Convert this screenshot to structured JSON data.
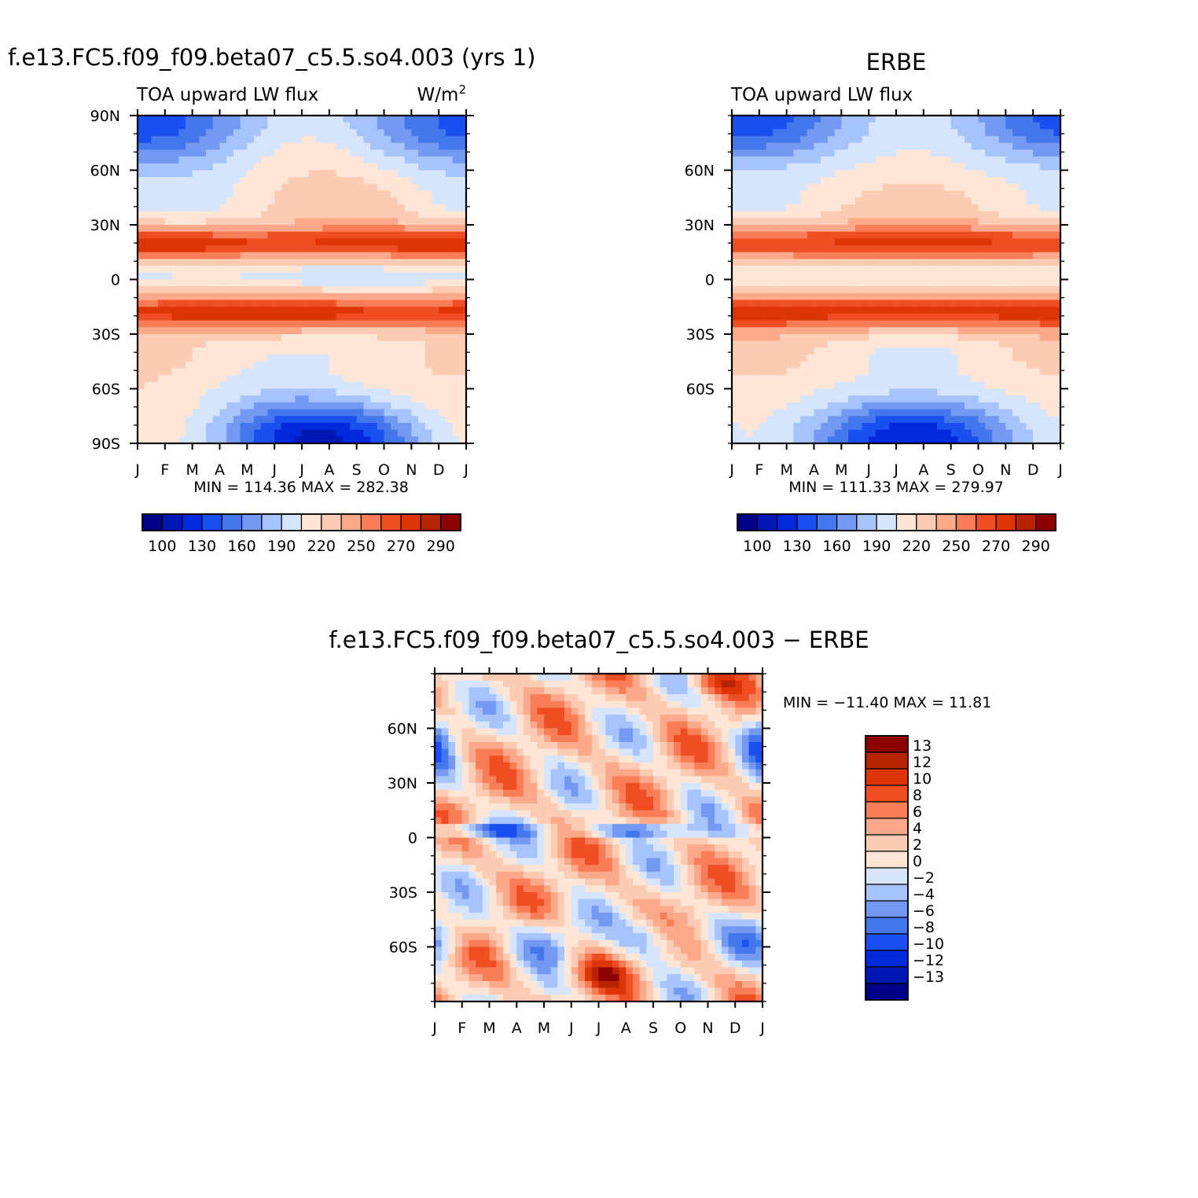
{
  "palette": {
    "cmap": [
      "#000087",
      "#0018b4",
      "#0029dc",
      "#1a4ff0",
      "#4577ec",
      "#7399f2",
      "#a7c3fb",
      "#d6e5fb",
      "#fee6d6",
      "#fccbb3",
      "#fba98a",
      "#f97e57",
      "#ef4d22",
      "#dd3506",
      "#b52300",
      "#8c0000"
    ],
    "diff": [
      "#000087",
      "#0018b4",
      "#0029dc",
      "#1a4ff0",
      "#4577ec",
      "#7399f2",
      "#a7c3fb",
      "#d6e5fb",
      "#fee6d6",
      "#fccbb3",
      "#fba98a",
      "#f97e57",
      "#ef4d22",
      "#dd3506",
      "#b52300",
      "#8c0000"
    ]
  },
  "chart_data": [
    {
      "type": "heatmap",
      "id": "model",
      "title": "f.e13.FC5.f09_f09.beta07_c5.5.so4.003 (yrs 1)",
      "subtitle_left": "TOA upward LW flux",
      "subtitle_right": "W/m",
      "subtitle_right_sup": "2",
      "xticks": [
        "J",
        "F",
        "M",
        "A",
        "M",
        "J",
        "J",
        "A",
        "S",
        "O",
        "N",
        "D",
        "J"
      ],
      "yticks": [
        "90N",
        "60N",
        "30N",
        "0",
        "30S",
        "60S",
        "90S"
      ],
      "ylim": [
        -90,
        90
      ],
      "stats": "MIN = 114.36 MAX = 282.38",
      "levels": [
        100,
        115,
        130,
        145,
        160,
        175,
        190,
        205,
        220,
        235,
        250,
        260,
        270,
        280,
        290
      ],
      "colorbar_labels": [
        "100",
        "130",
        "160",
        "190",
        "220",
        "250",
        "270",
        "290"
      ],
      "min": 114.36,
      "max": 282.38
    },
    {
      "type": "heatmap",
      "id": "obs",
      "title": "ERBE",
      "subtitle_left": "TOA upward LW flux",
      "xticks": [
        "J",
        "F",
        "M",
        "A",
        "M",
        "J",
        "J",
        "A",
        "S",
        "O",
        "N",
        "D",
        "J"
      ],
      "yticks": [
        "60N",
        "30N",
        "0",
        "30S",
        "60S"
      ],
      "ylim": [
        -90,
        90
      ],
      "stats": "MIN = 111.33 MAX = 279.97",
      "levels": [
        100,
        115,
        130,
        145,
        160,
        175,
        190,
        205,
        220,
        235,
        250,
        260,
        270,
        280,
        290
      ],
      "colorbar_labels": [
        "100",
        "130",
        "160",
        "190",
        "220",
        "250",
        "270",
        "290"
      ],
      "min": 111.33,
      "max": 279.97
    },
    {
      "type": "heatmap",
      "id": "diff",
      "title": "f.e13.FC5.f09_f09.beta07_c5.5.so4.003 − ERBE",
      "xticks": [
        "J",
        "F",
        "M",
        "A",
        "M",
        "J",
        "J",
        "A",
        "S",
        "O",
        "N",
        "D",
        "J"
      ],
      "yticks": [
        "60N",
        "30N",
        "0",
        "30S",
        "60S"
      ],
      "ylim": [
        -90,
        90
      ],
      "stats": "MIN = −11.40 MAX =   11.81",
      "levels": [
        -13,
        -12,
        -10,
        -8,
        -6,
        -4,
        -2,
        0,
        2,
        4,
        6,
        8,
        10,
        12,
        13
      ],
      "colorbar_labels": [
        "13",
        "12",
        "10",
        "8",
        "6",
        "4",
        "2",
        "0",
        "−2",
        "−4",
        "−6",
        "−8",
        "−10",
        "−12",
        "−13"
      ],
      "min": -11.4,
      "max": 11.81
    }
  ]
}
